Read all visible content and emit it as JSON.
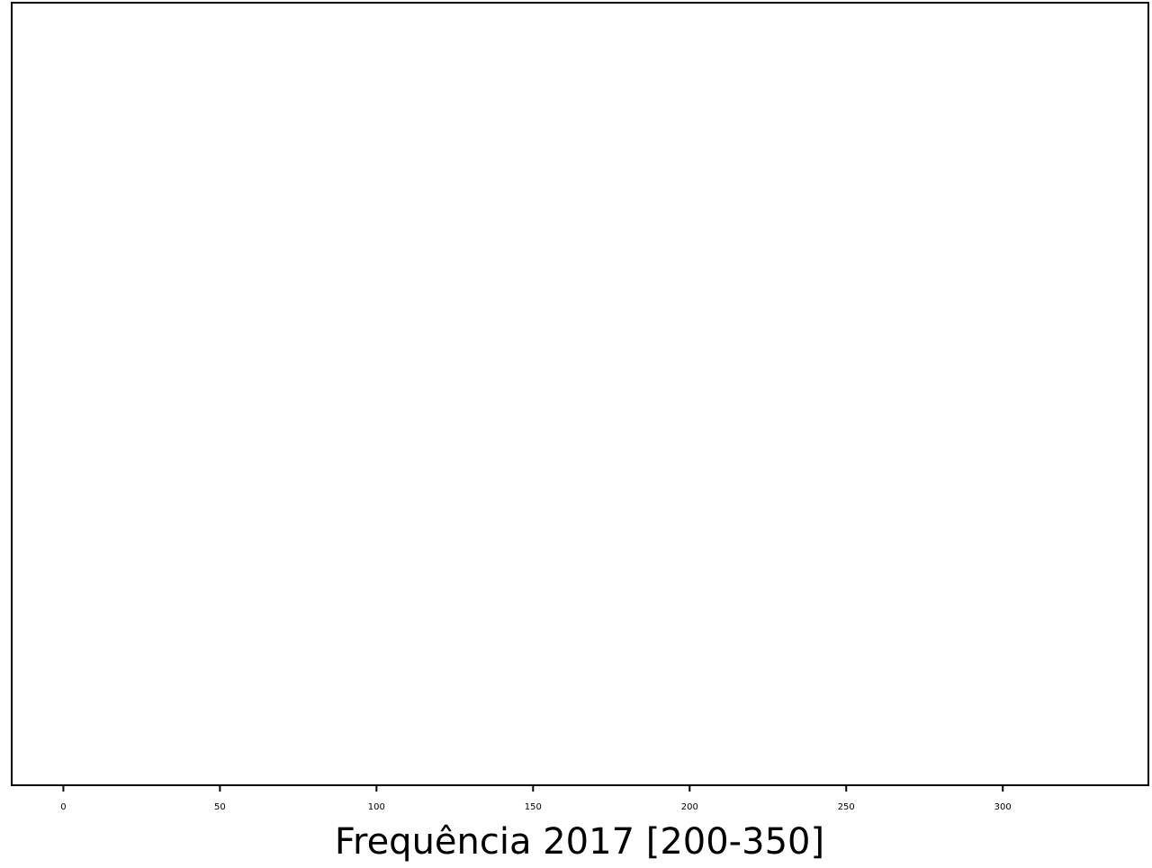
{
  "chart_data": {
    "type": "bar",
    "title": "",
    "xlabel": "Frequência 2017 [200-350]",
    "ylabel": "",
    "x_ticks": [
      0,
      50,
      100,
      150,
      200,
      250,
      300
    ],
    "xlim": [
      -16.5,
      346.5
    ],
    "series": [],
    "grid": false,
    "colors": {
      "axis": "#000000",
      "background": "#ffffff"
    }
  }
}
